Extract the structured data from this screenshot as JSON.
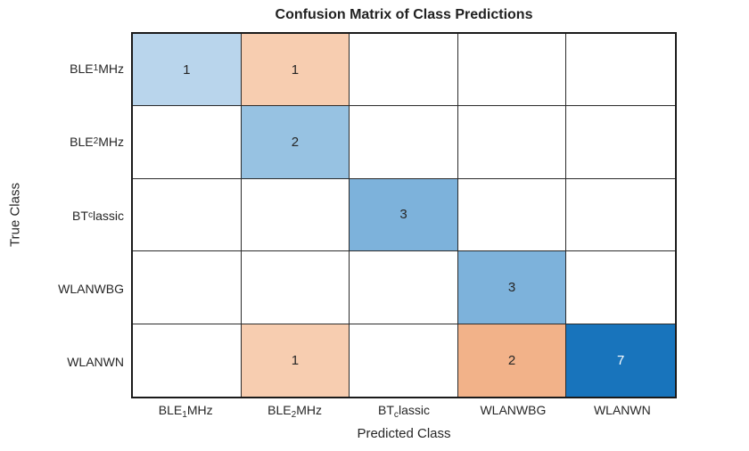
{
  "chart_data": {
    "type": "heatmap",
    "subtype": "confusion-matrix",
    "title": "Confusion Matrix of Class Predictions",
    "xlabel": "Predicted Class",
    "ylabel": "True Class",
    "x_categories": [
      "BLE_1MHz",
      "BLE_2MHz",
      "BT_classic",
      "WLANWBG",
      "WLANWN"
    ],
    "y_categories": [
      "BLE_1MHz",
      "BLE_2MHz",
      "BT_classic",
      "WLANWBG",
      "WLANWN"
    ],
    "matrix": [
      [
        1,
        1,
        0,
        0,
        0
      ],
      [
        0,
        2,
        0,
        0,
        0
      ],
      [
        0,
        0,
        3,
        0,
        0
      ],
      [
        0,
        0,
        0,
        3,
        0
      ],
      [
        0,
        1,
        0,
        2,
        7
      ]
    ],
    "legend_position": "none",
    "grid": true,
    "zero_cells_blank": true
  },
  "classes": [
    {
      "name": "BLE_1MHz",
      "segments": [
        {
          "t": "BLE",
          "sub": false
        },
        {
          "t": "1",
          "sub": true
        },
        {
          "t": "MHz",
          "sub": false
        }
      ]
    },
    {
      "name": "BLE_2MHz",
      "segments": [
        {
          "t": "BLE",
          "sub": false
        },
        {
          "t": "2",
          "sub": true
        },
        {
          "t": "MHz",
          "sub": false
        }
      ]
    },
    {
      "name": "BT_classic",
      "segments": [
        {
          "t": "BT",
          "sub": false
        },
        {
          "t": "c",
          "sub": true
        },
        {
          "t": "lassic",
          "sub": false
        }
      ]
    },
    {
      "name": "WLANWBG",
      "segments": [
        {
          "t": "WLANWBG",
          "sub": false
        }
      ]
    },
    {
      "name": "WLANWN",
      "segments": [
        {
          "t": "WLANWN",
          "sub": false
        }
      ]
    }
  ],
  "cells": [
    {
      "row": 0,
      "col": 0,
      "value": "1",
      "bg": "#b9d5ec",
      "fg": "#262626"
    },
    {
      "row": 0,
      "col": 1,
      "value": "1",
      "bg": "#f7cdb0",
      "fg": "#262626"
    },
    {
      "row": 1,
      "col": 1,
      "value": "2",
      "bg": "#97c2e2",
      "fg": "#262626"
    },
    {
      "row": 2,
      "col": 2,
      "value": "3",
      "bg": "#7db2db",
      "fg": "#262626"
    },
    {
      "row": 3,
      "col": 3,
      "value": "3",
      "bg": "#7db2db",
      "fg": "#262626"
    },
    {
      "row": 4,
      "col": 1,
      "value": "1",
      "bg": "#f7cdb0",
      "fg": "#262626"
    },
    {
      "row": 4,
      "col": 3,
      "value": "2",
      "bg": "#f2b289",
      "fg": "#262626"
    },
    {
      "row": 4,
      "col": 4,
      "value": "7",
      "bg": "#1874bc",
      "fg": "#ffffff"
    }
  ],
  "colors": {
    "diagonal_base": "#1874bc",
    "off_diagonal_base": "#e8833a",
    "empty_cell": "#ffffff",
    "grid_line": "#2b2b2b",
    "text": "#262626"
  }
}
